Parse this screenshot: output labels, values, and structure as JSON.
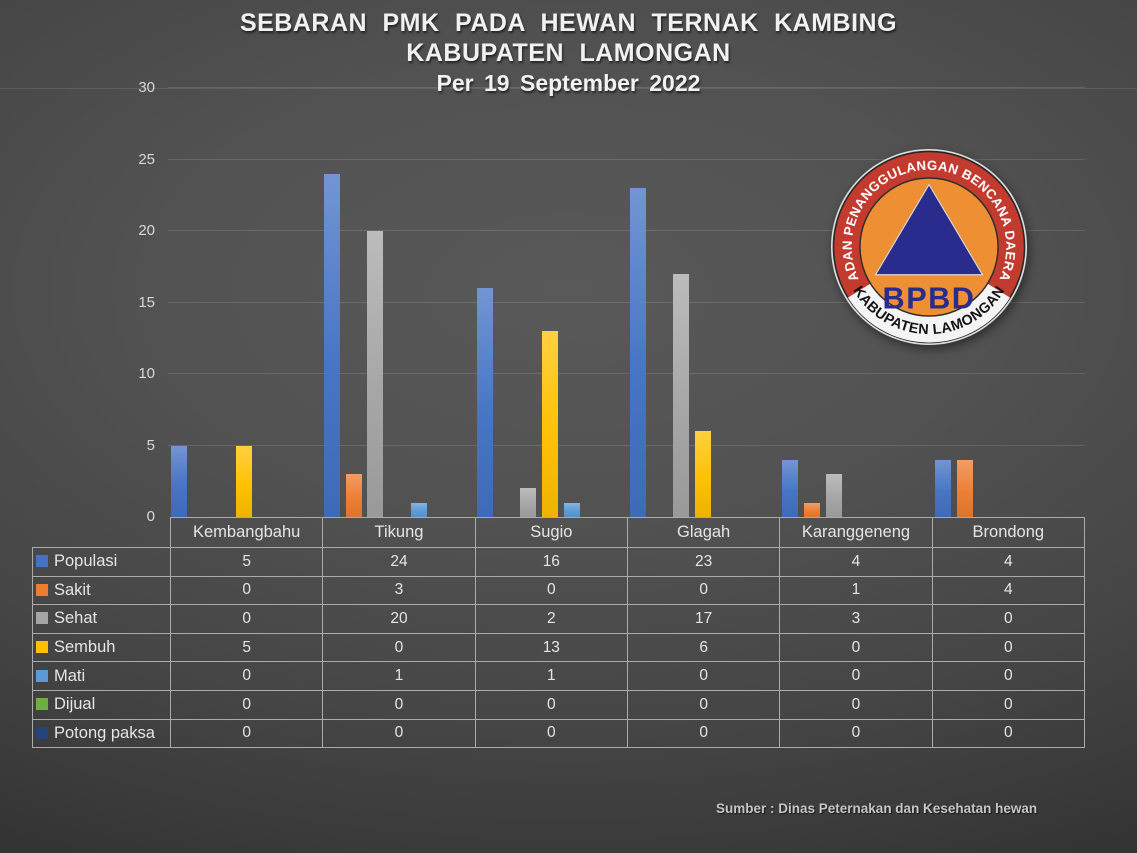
{
  "title": {
    "line1": "SEBARAN PMK PADA HEWAN TERNAK KAMBING",
    "line2": "KABUPATEN LAMONGAN",
    "line3": "Per 19 September 2022"
  },
  "source_note": "Sumber : Dinas Peternakan dan Kesehatan hewan",
  "logo": {
    "top_text": "BADAN PENANGGULANGAN BENCANA DAERAH",
    "bottom_text": "KABUPATEN LAMONGAN",
    "center_text": "BPBD",
    "ring_color": "#C23B2E",
    "band_color": "#F4F4F4",
    "inner_color": "#EE8F33",
    "triangle_color": "#292C8C"
  },
  "chart_data": {
    "type": "bar",
    "title": "SEBARAN PMK PADA HEWAN TERNAK KAMBING KABUPATEN LAMONGAN Per 19 September 2022",
    "categories": [
      "Kembangbahu",
      "Tikung",
      "Sugio",
      "Glagah",
      "Karanggeneng",
      "Brondong"
    ],
    "series": [
      {
        "name": "Populasi",
        "color": "#4472C4",
        "values": [
          5,
          24,
          16,
          23,
          4,
          4
        ]
      },
      {
        "name": "Sakit",
        "color": "#ED7D31",
        "values": [
          0,
          3,
          0,
          0,
          1,
          4
        ]
      },
      {
        "name": "Sehat",
        "color": "#A5A5A5",
        "values": [
          0,
          20,
          2,
          17,
          3,
          0
        ]
      },
      {
        "name": "Sembuh",
        "color": "#FFC000",
        "values": [
          5,
          0,
          13,
          6,
          0,
          0
        ]
      },
      {
        "name": "Mati",
        "color": "#5B9BD5",
        "values": [
          0,
          1,
          1,
          0,
          0,
          0
        ]
      },
      {
        "name": "Dijual",
        "color": "#70AD47",
        "values": [
          0,
          0,
          0,
          0,
          0,
          0
        ]
      },
      {
        "name": "Potong paksa",
        "color": "#264478",
        "values": [
          0,
          0,
          0,
          0,
          0,
          0
        ]
      }
    ],
    "xlabel": "",
    "ylabel": "",
    "ylim": [
      0,
      30
    ],
    "yticks": [
      0,
      5,
      10,
      15,
      20,
      25,
      30
    ],
    "grid": true,
    "legend_position": "table-left-column"
  }
}
